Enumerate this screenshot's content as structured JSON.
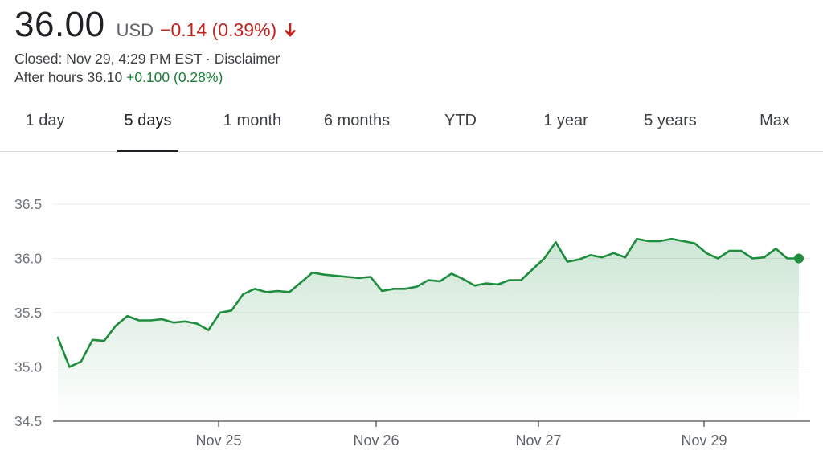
{
  "quote": {
    "price": "36.00",
    "currency": "USD",
    "change": "−0.14 (0.39%)",
    "closed_text": "Closed: Nov 29, 4:29 PM EST",
    "separator": "·",
    "disclaimer": "Disclaimer",
    "after_hours_label": "After hours 36.10",
    "after_hours_change": "+0.100 (0.28%)",
    "down_color": "#c5221f",
    "up_color": "#188038"
  },
  "tabs": [
    {
      "label": "1 day"
    },
    {
      "label": "5 days",
      "active": true
    },
    {
      "label": "1 month"
    },
    {
      "label": "6 months"
    },
    {
      "label": "YTD"
    },
    {
      "label": "1 year"
    },
    {
      "label": "5 years"
    },
    {
      "label": "Max"
    }
  ],
  "chart_data": {
    "type": "area",
    "title": "",
    "xlabel": "",
    "ylabel": "",
    "ylim": [
      34.5,
      36.5
    ],
    "yticks": [
      "36.5",
      "36.0",
      "35.5",
      "35.0",
      "34.5"
    ],
    "xticks": [
      "Nov 25",
      "Nov 26",
      "Nov 27",
      "Nov 29"
    ],
    "grid": true,
    "line_color": "#1e8e3e",
    "series": [
      {
        "values": [
          35.27,
          35.0,
          35.05,
          35.25,
          35.24,
          35.38,
          35.47,
          35.43,
          35.43,
          35.44,
          35.41,
          35.42,
          35.4,
          35.34,
          35.5,
          35.52,
          35.67,
          35.72,
          35.69,
          35.7,
          35.69,
          35.78,
          35.87,
          35.85,
          35.84,
          35.83,
          35.82,
          35.83,
          35.7,
          35.72,
          35.72,
          35.74,
          35.8,
          35.79,
          35.86,
          35.81,
          35.75,
          35.77,
          35.76,
          35.8,
          35.8,
          35.9,
          36.0,
          36.15,
          35.97,
          35.99,
          36.03,
          36.01,
          36.05,
          36.01,
          36.18,
          36.16,
          36.16,
          36.18,
          36.16,
          36.14,
          36.05,
          36.0,
          36.07,
          36.07,
          36.0,
          36.01,
          36.09,
          36.0,
          36.0
        ]
      }
    ]
  }
}
